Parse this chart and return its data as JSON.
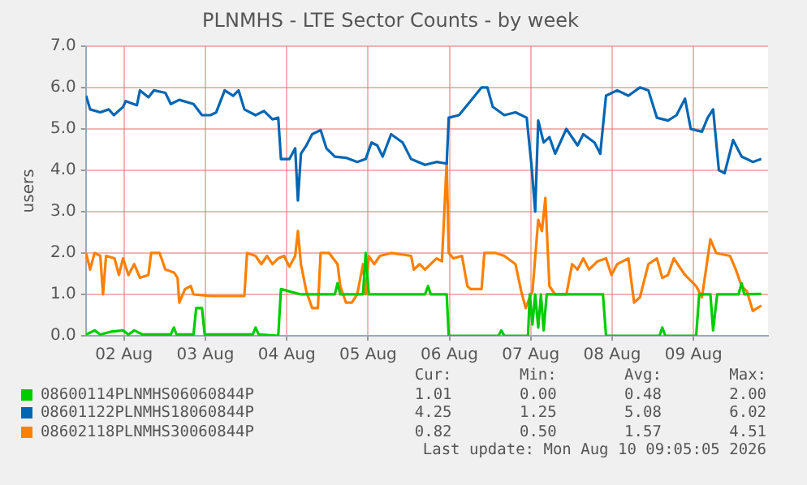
{
  "chart_data": {
    "type": "line",
    "title": "PLNMHS - LTE Sector Counts - by week",
    "ylabel": "users",
    "xlim": [
      "2026-08-02T00:45",
      "2026-08-10T10:00"
    ],
    "xticks": [
      {
        "value": "2026-08-02T12:00",
        "label": "02 Aug"
      },
      {
        "value": "2026-08-03T12:00",
        "label": "03 Aug"
      },
      {
        "value": "2026-08-04T12:00",
        "label": "04 Aug"
      },
      {
        "value": "2026-08-05T12:00",
        "label": "05 Aug"
      },
      {
        "value": "2026-08-06T12:00",
        "label": "06 Aug"
      },
      {
        "value": "2026-08-07T12:00",
        "label": "07 Aug"
      },
      {
        "value": "2026-08-08T12:00",
        "label": "08 Aug"
      },
      {
        "value": "2026-08-09T12:00",
        "label": "09 Aug"
      }
    ],
    "ylim": [
      0,
      7
    ],
    "yticks": [
      {
        "value": 0,
        "label": "0.0"
      },
      {
        "value": 1,
        "label": "1.0"
      },
      {
        "value": 2,
        "label": "2.0"
      },
      {
        "value": 3,
        "label": "3.0"
      },
      {
        "value": 4,
        "label": "4.0"
      },
      {
        "value": 5,
        "label": "5.0"
      },
      {
        "value": 6,
        "label": "6.0"
      },
      {
        "value": 7,
        "label": "7.0"
      }
    ],
    "grid": true,
    "legend": "bottom",
    "marker": "none",
    "line_style": "solid",
    "series": [
      {
        "name": "08600114PLNMHS06060844P",
        "color": "#00cc00",
        "x": [
          "2026-08-02T00:48",
          "2026-08-02T03:18",
          "2026-08-02T05:00",
          "2026-08-02T08:18",
          "2026-08-02T11:42",
          "2026-08-02T13:18",
          "2026-08-02T15:00",
          "2026-08-02T17:30",
          "2026-08-03T01:48",
          "2026-08-03T02:42",
          "2026-08-03T03:30",
          "2026-08-03T08:30",
          "2026-08-03T09:18",
          "2026-08-03T11:00",
          "2026-08-03T11:48",
          "2026-08-04T02:00",
          "2026-08-04T02:48",
          "2026-08-04T03:42",
          "2026-08-04T09:30",
          "2026-08-04T10:18",
          "2026-08-04T12:48",
          "2026-08-04T16:12",
          "2026-08-04T19:30",
          "2026-08-05T02:12",
          "2026-08-05T03:00",
          "2026-08-05T03:48",
          "2026-08-05T10:30",
          "2026-08-05T11:18",
          "2026-08-05T12:12",
          "2026-08-05T15:30",
          "2026-08-06T04:48",
          "2026-08-06T05:42",
          "2026-08-06T06:30",
          "2026-08-06T11:12",
          "2026-08-06T11:48",
          "2026-08-07T02:30",
          "2026-08-07T03:18",
          "2026-08-07T04:12",
          "2026-08-07T11:12",
          "2026-08-07T11:42",
          "2026-08-07T12:30",
          "2026-08-07T13:18",
          "2026-08-07T14:12",
          "2026-08-07T15:00",
          "2026-08-07T15:48",
          "2026-08-07T16:42",
          "2026-08-08T09:18",
          "2026-08-08T10:12",
          "2026-08-09T02:00",
          "2026-08-09T02:48",
          "2026-08-09T03:42",
          "2026-08-09T12:48",
          "2026-08-09T13:42",
          "2026-08-09T17:00",
          "2026-08-09T17:48",
          "2026-08-09T19:00",
          "2026-08-10T01:18",
          "2026-08-10T02:12",
          "2026-08-10T03:00",
          "2026-08-10T08:00"
        ],
        "values": [
          0.03,
          0.13,
          0.03,
          0.1,
          0.13,
          0.03,
          0.13,
          0.03,
          0.03,
          0.2,
          0.03,
          0.03,
          0.67,
          0.67,
          0.03,
          0.03,
          0.2,
          0.03,
          0,
          1.13,
          1.07,
          1,
          1,
          1,
          1.27,
          1,
          1,
          2,
          1,
          1,
          1,
          1.2,
          1,
          1,
          0,
          0,
          0.13,
          0,
          0,
          1,
          0.27,
          1,
          0.2,
          1,
          0.13,
          1,
          1,
          0,
          0,
          0.2,
          0,
          0,
          1,
          1,
          0.13,
          1,
          1,
          1.27,
          1,
          1.01
        ]
      },
      {
        "name": "08601122PLNMHS18060844P",
        "color": "#0066b3",
        "x": [
          "2026-08-02T00:48",
          "2026-08-02T02:00",
          "2026-08-02T05:00",
          "2026-08-02T07:30",
          "2026-08-02T09:00",
          "2026-08-02T11:42",
          "2026-08-02T12:30",
          "2026-08-02T15:48",
          "2026-08-02T16:42",
          "2026-08-02T19:12",
          "2026-08-02T20:48",
          "2026-08-03T00:12",
          "2026-08-03T01:48",
          "2026-08-03T04:18",
          "2026-08-03T08:30",
          "2026-08-03T11:00",
          "2026-08-03T13:30",
          "2026-08-03T15:12",
          "2026-08-03T17:42",
          "2026-08-03T20:12",
          "2026-08-03T21:48",
          "2026-08-03T23:30",
          "2026-08-04T02:48",
          "2026-08-04T05:18",
          "2026-08-04T07:48",
          "2026-08-04T09:30",
          "2026-08-04T10:18",
          "2026-08-04T12:48",
          "2026-08-04T14:30",
          "2026-08-04T15:18",
          "2026-08-04T16:12",
          "2026-08-04T17:48",
          "2026-08-04T19:30",
          "2026-08-04T22:00",
          "2026-08-04T23:42",
          "2026-08-05T02:12",
          "2026-08-05T05:30",
          "2026-08-05T08:48",
          "2026-08-05T11:18",
          "2026-08-05T13:00",
          "2026-08-05T14:42",
          "2026-08-05T16:18",
          "2026-08-05T18:48",
          "2026-08-05T22:12",
          "2026-08-06T00:42",
          "2026-08-06T04:48",
          "2026-08-06T08:12",
          "2026-08-06T11:12",
          "2026-08-06T11:48",
          "2026-08-06T14:48",
          "2026-08-06T18:12",
          "2026-08-06T21:30",
          "2026-08-06T23:12",
          "2026-08-07T00:48",
          "2026-08-07T04:12",
          "2026-08-07T07:30",
          "2026-08-07T10:48",
          "2026-08-07T12:12",
          "2026-08-07T13:18",
          "2026-08-07T14:12",
          "2026-08-07T15:48",
          "2026-08-07T17:30",
          "2026-08-07T19:12",
          "2026-08-07T22:30",
          "2026-08-08T01:48",
          "2026-08-08T03:30",
          "2026-08-08T06:48",
          "2026-08-08T08:30",
          "2026-08-08T10:12",
          "2026-08-08T13:30",
          "2026-08-08T16:48",
          "2026-08-08T20:12",
          "2026-08-08T22:42",
          "2026-08-09T01:12",
          "2026-08-09T04:30",
          "2026-08-09T07:00",
          "2026-08-09T09:30",
          "2026-08-09T11:12",
          "2026-08-09T14:30",
          "2026-08-09T16:12",
          "2026-08-09T17:48",
          "2026-08-09T19:30",
          "2026-08-09T21:12",
          "2026-08-09T23:42",
          "2026-08-10T02:12",
          "2026-08-10T05:30",
          "2026-08-10T08:00"
        ],
        "values": [
          5.8,
          5.47,
          5.4,
          5.47,
          5.33,
          5.53,
          5.67,
          5.57,
          5.93,
          5.76,
          5.93,
          5.87,
          5.6,
          5.7,
          5.6,
          5.33,
          5.33,
          5.4,
          5.93,
          5.8,
          5.93,
          5.47,
          5.33,
          5.43,
          5.23,
          5.27,
          4.27,
          4.27,
          4.53,
          3.27,
          4.4,
          4.6,
          4.87,
          4.97,
          4.53,
          4.33,
          4.3,
          4.2,
          4.27,
          4.67,
          4.6,
          4.33,
          4.87,
          4.67,
          4.27,
          4.13,
          4.2,
          4.16,
          5.27,
          5.33,
          5.67,
          6.0,
          6.0,
          5.53,
          5.33,
          5.4,
          5.27,
          4.13,
          3.0,
          5.2,
          4.67,
          4.8,
          4.4,
          5.0,
          4.6,
          4.87,
          4.67,
          4.4,
          5.8,
          5.93,
          5.8,
          6.0,
          5.93,
          5.27,
          5.2,
          5.33,
          5.73,
          5.0,
          4.93,
          5.27,
          5.47,
          4.0,
          3.93,
          4.73,
          4.33,
          4.2,
          4.27
        ]
      },
      {
        "name": "08602118PLNMHS30060844P",
        "color": "#ff8000",
        "x": [
          "2026-08-02T00:48",
          "2026-08-02T02:00",
          "2026-08-02T03:18",
          "2026-08-02T05:00",
          "2026-08-02T05:48",
          "2026-08-02T06:42",
          "2026-08-02T09:12",
          "2026-08-02T10:30",
          "2026-08-02T11:42",
          "2026-08-02T13:18",
          "2026-08-02T15:00",
          "2026-08-02T16:42",
          "2026-08-02T19:12",
          "2026-08-02T20:00",
          "2026-08-02T22:30",
          "2026-08-03T00:12",
          "2026-08-03T02:42",
          "2026-08-03T03:48",
          "2026-08-03T04:18",
          "2026-08-03T06:00",
          "2026-08-03T07:42",
          "2026-08-03T08:30",
          "2026-08-03T13:30",
          "2026-08-03T16:48",
          "2026-08-03T23:30",
          "2026-08-04T00:18",
          "2026-08-04T02:48",
          "2026-08-04T04:30",
          "2026-08-04T06:12",
          "2026-08-04T07:48",
          "2026-08-04T09:30",
          "2026-08-04T11:12",
          "2026-08-04T12:48",
          "2026-08-04T14:30",
          "2026-08-04T15:18",
          "2026-08-04T16:12",
          "2026-08-04T17:48",
          "2026-08-04T19:30",
          "2026-08-04T21:12",
          "2026-08-04T22:00",
          "2026-08-05T00:30",
          "2026-08-05T03:00",
          "2026-08-05T03:48",
          "2026-08-05T05:30",
          "2026-08-05T07:12",
          "2026-08-05T08:48",
          "2026-08-05T10:30",
          "2026-08-05T11:18",
          "2026-08-05T12:12",
          "2026-08-05T13:48",
          "2026-08-05T15:30",
          "2026-08-05T18:48",
          "2026-08-06T00:42",
          "2026-08-06T01:30",
          "2026-08-06T03:12",
          "2026-08-06T04:48",
          "2026-08-06T08:12",
          "2026-08-06T09:48",
          "2026-08-06T11:12",
          "2026-08-06T11:48",
          "2026-08-06T13:12",
          "2026-08-06T15:42",
          "2026-08-06T17:18",
          "2026-08-06T18:12",
          "2026-08-06T21:30",
          "2026-08-06T22:18",
          "2026-08-07T01:42",
          "2026-08-07T04:12",
          "2026-08-07T07:30",
          "2026-08-07T09:12",
          "2026-08-07T10:30",
          "2026-08-07T11:42",
          "2026-08-07T12:30",
          "2026-08-07T14:12",
          "2026-08-07T15:18",
          "2026-08-07T16:18",
          "2026-08-07T17:30",
          "2026-08-07T19:12",
          "2026-08-07T22:30",
          "2026-08-08T00:12",
          "2026-08-08T01:48",
          "2026-08-08T03:30",
          "2026-08-08T05:12",
          "2026-08-08T07:42",
          "2026-08-08T10:12",
          "2026-08-08T11:48",
          "2026-08-08T13:30",
          "2026-08-08T16:48",
          "2026-08-08T18:30",
          "2026-08-08T20:12",
          "2026-08-08T22:42",
          "2026-08-09T01:12",
          "2026-08-09T02:48",
          "2026-08-09T04:30",
          "2026-08-09T06:12",
          "2026-08-09T09:30",
          "2026-08-09T12:48",
          "2026-08-09T14:30",
          "2026-08-09T17:00",
          "2026-08-09T18:42",
          "2026-08-09T22:48",
          "2026-08-10T00:30",
          "2026-08-10T02:12",
          "2026-08-10T03:48",
          "2026-08-10T05:30",
          "2026-08-10T08:00"
        ],
        "values": [
          2.0,
          1.6,
          2.0,
          1.93,
          1.0,
          1.93,
          1.87,
          1.47,
          1.87,
          1.47,
          1.73,
          1.4,
          1.47,
          2.0,
          2.0,
          1.6,
          1.53,
          1.4,
          0.8,
          1.13,
          1.2,
          1.0,
          0.96,
          0.96,
          0.96,
          2.0,
          1.93,
          1.73,
          1.93,
          1.73,
          1.87,
          1.93,
          1.67,
          1.93,
          2.53,
          1.73,
          1.07,
          0.67,
          0.67,
          2.0,
          2.0,
          1.73,
          1.2,
          0.8,
          0.8,
          1.0,
          1.73,
          1.0,
          1.93,
          1.73,
          1.93,
          2.0,
          1.93,
          1.6,
          1.73,
          1.6,
          1.87,
          1.8,
          4.2,
          2.0,
          1.87,
          1.93,
          1.2,
          1.13,
          1.13,
          2.0,
          2.0,
          1.93,
          1.73,
          1.07,
          0.67,
          0.93,
          1.07,
          2.8,
          2.53,
          3.33,
          1.2,
          1.0,
          1.0,
          1.73,
          1.6,
          1.87,
          1.6,
          1.8,
          1.87,
          1.47,
          1.73,
          1.87,
          0.8,
          0.93,
          1.73,
          1.87,
          1.4,
          1.47,
          1.87,
          1.47,
          1.2,
          0.93,
          2.33,
          2.0,
          1.93,
          1.6,
          1.2,
          1.07,
          0.6,
          0.73
        ]
      }
    ],
    "annotations": [
      "Cur:",
      "Min:",
      "Avg:",
      "Max:",
      "1.01",
      "0.00",
      "0.48",
      "2.00",
      "4.25",
      "1.25",
      "5.08",
      "6.02",
      "0.82",
      "0.50",
      "1.57",
      "4.51",
      "Last update: Mon Aug 10 09:05:05 2026"
    ]
  }
}
